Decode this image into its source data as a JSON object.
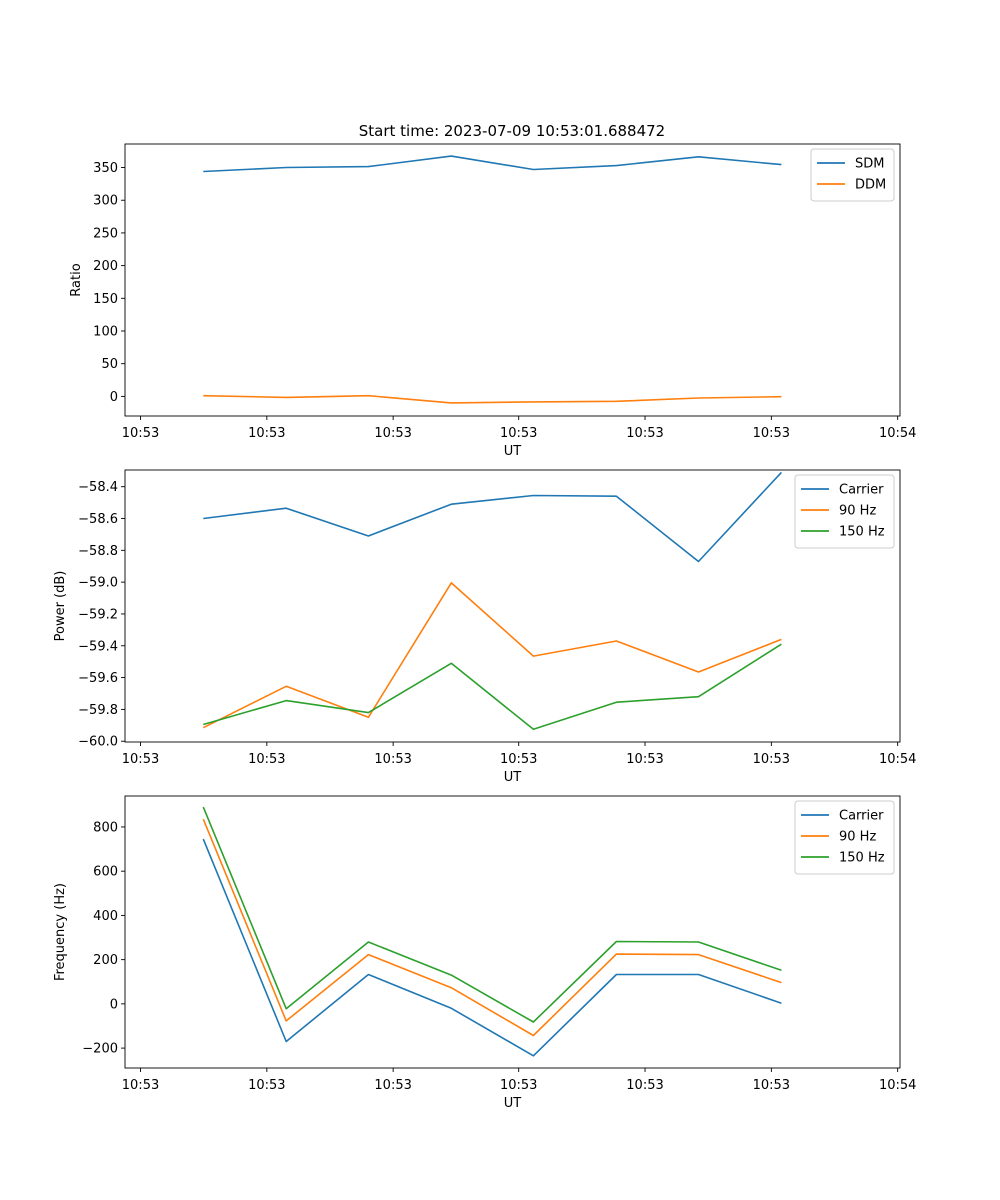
{
  "figure": {
    "title": "Start time: 2023-07-09 10:53:01.688472"
  },
  "chart_data": [
    {
      "type": "line",
      "ylabel": "Ratio",
      "xlabel": "UT",
      "ylim": [
        -30,
        386
      ],
      "yticks": [
        0,
        50,
        100,
        150,
        200,
        250,
        300,
        350
      ],
      "xticks": [
        "10:53",
        "10:53",
        "10:53",
        "10:53",
        "10:53",
        "10:53",
        "10:54"
      ],
      "legend_position": "top-right",
      "series": [
        {
          "name": "SDM",
          "color": "#1f77b4",
          "values": [
            344,
            350,
            351.5,
            367.5,
            347,
            353,
            366.5,
            354.5
          ]
        },
        {
          "name": "DDM",
          "color": "#ff7f0e",
          "values": [
            1,
            -1.5,
            1,
            -10,
            -8.5,
            -7.5,
            -2.5,
            -0.5
          ]
        }
      ]
    },
    {
      "type": "line",
      "ylabel": "Power (dB)",
      "xlabel": "UT",
      "ylim": [
        -60.005,
        -58.295
      ],
      "yticks": [
        -60.0,
        -59.8,
        -59.6,
        -59.4,
        -59.2,
        -59.0,
        -58.8,
        -58.6,
        -58.4
      ],
      "ytick_labels": [
        "−60.0",
        "−59.8",
        "−59.6",
        "−59.4",
        "−59.2",
        "−59.0",
        "−58.8",
        "−58.6",
        "−58.4"
      ],
      "xticks": [
        "10:53",
        "10:53",
        "10:53",
        "10:53",
        "10:53",
        "10:53",
        "10:54"
      ],
      "legend_position": "top-right",
      "series": [
        {
          "name": "Carrier",
          "color": "#1f77b4",
          "values": [
            -58.6,
            -58.535,
            -58.71,
            -58.51,
            -58.455,
            -58.46,
            -58.87,
            -58.31
          ]
        },
        {
          "name": "90 Hz",
          "color": "#ff7f0e",
          "values": [
            -59.915,
            -59.655,
            -59.85,
            -59.005,
            -59.465,
            -59.37,
            -59.565,
            -59.36
          ]
        },
        {
          "name": "150 Hz",
          "color": "#2ca02c",
          "values": [
            -59.895,
            -59.745,
            -59.82,
            -59.51,
            -59.925,
            -59.755,
            -59.72,
            -59.39
          ]
        }
      ]
    },
    {
      "type": "line",
      "ylabel": "Frequency (Hz)",
      "xlabel": "UT",
      "ylim": [
        -290,
        940
      ],
      "yticks": [
        -200,
        0,
        200,
        400,
        600,
        800
      ],
      "ytick_labels": [
        "−200",
        "0",
        "200",
        "400",
        "600",
        "800"
      ],
      "xticks": [
        "10:53",
        "10:53",
        "10:53",
        "10:53",
        "10:53",
        "10:53",
        "10:54"
      ],
      "legend_position": "top-right",
      "series": [
        {
          "name": "Carrier",
          "color": "#1f77b4",
          "values": [
            745,
            -170,
            133,
            -20,
            -235,
            133,
            133,
            3
          ]
        },
        {
          "name": "90 Hz",
          "color": "#ff7f0e",
          "values": [
            835,
            -77,
            223,
            73,
            -143,
            225,
            223,
            96
          ]
        },
        {
          "name": "150 Hz",
          "color": "#2ca02c",
          "values": [
            890,
            -22,
            280,
            130,
            -82,
            282,
            280,
            152
          ]
        }
      ]
    }
  ]
}
